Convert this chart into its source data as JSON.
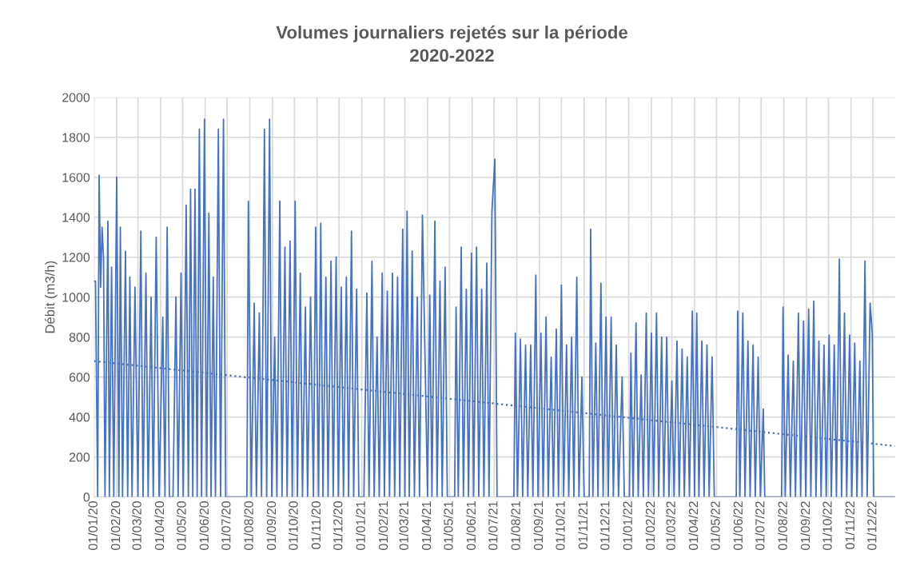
{
  "chart_data": {
    "type": "line",
    "title": "Volumes journaliers rejetés sur la période\n2020-2022",
    "ylabel": "Débit (m3/h)",
    "xlim": [
      "2020-01-01",
      "2022-12-31"
    ],
    "ylim": [
      0,
      2000
    ],
    "yticks": [
      0,
      200,
      400,
      600,
      800,
      1000,
      1200,
      1400,
      1600,
      1800,
      2000
    ],
    "xticks": [
      {
        "value": "2020-01-01",
        "label": "01/01/20"
      },
      {
        "value": "2020-02-01",
        "label": "01/02/20"
      },
      {
        "value": "2020-03-01",
        "label": "01/03/20"
      },
      {
        "value": "2020-04-01",
        "label": "01/04/20"
      },
      {
        "value": "2020-05-01",
        "label": "01/05/20"
      },
      {
        "value": "2020-06-01",
        "label": "01/06/20"
      },
      {
        "value": "2020-07-01",
        "label": "01/07/20"
      },
      {
        "value": "2020-08-01",
        "label": "01/08/20"
      },
      {
        "value": "2020-09-01",
        "label": "01/09/20"
      },
      {
        "value": "2020-10-01",
        "label": "01/10/20"
      },
      {
        "value": "2020-11-01",
        "label": "01/11/20"
      },
      {
        "value": "2020-12-01",
        "label": "01/12/20"
      },
      {
        "value": "2021-01-01",
        "label": "01/01/21"
      },
      {
        "value": "2021-02-01",
        "label": "01/02/21"
      },
      {
        "value": "2021-03-01",
        "label": "01/03/21"
      },
      {
        "value": "2021-04-01",
        "label": "01/04/21"
      },
      {
        "value": "2021-05-01",
        "label": "01/05/21"
      },
      {
        "value": "2021-06-01",
        "label": "01/06/21"
      },
      {
        "value": "2021-07-01",
        "label": "01/07/21"
      },
      {
        "value": "2021-08-01",
        "label": "01/08/21"
      },
      {
        "value": "2021-09-01",
        "label": "01/09/21"
      },
      {
        "value": "2021-10-01",
        "label": "01/10/21"
      },
      {
        "value": "2021-11-01",
        "label": "01/11/21"
      },
      {
        "value": "2021-12-01",
        "label": "01/12/21"
      },
      {
        "value": "2022-01-01",
        "label": "01/01/22"
      },
      {
        "value": "2022-02-01",
        "label": "01/02/22"
      },
      {
        "value": "2022-03-01",
        "label": "01/03/22"
      },
      {
        "value": "2022-04-01",
        "label": "01/04/22"
      },
      {
        "value": "2022-05-01",
        "label": "01/05/22"
      },
      {
        "value": "2022-06-01",
        "label": "01/06/22"
      },
      {
        "value": "2022-07-01",
        "label": "01/07/22"
      },
      {
        "value": "2022-08-01",
        "label": "01/08/22"
      },
      {
        "value": "2022-09-01",
        "label": "01/09/22"
      },
      {
        "value": "2022-10-01",
        "label": "01/10/22"
      },
      {
        "value": "2022-11-01",
        "label": "01/11/22"
      },
      {
        "value": "2022-12-01",
        "label": "01/12/22"
      }
    ],
    "grid": true,
    "series": [
      {
        "color": "#4472c4",
        "line_style": "solid",
        "x": [
          "2020-01-01",
          "2020-01-03",
          "2020-01-06",
          "2020-01-08",
          "2020-01-10",
          "2020-01-12",
          "2020-01-14",
          "2020-01-16",
          "2020-01-20",
          "2020-01-22",
          "2020-01-25",
          "2020-01-28",
          "2020-02-01",
          "2020-02-04",
          "2020-02-06",
          "2020-02-09",
          "2020-02-13",
          "2020-02-16",
          "2020-02-19",
          "2020-02-22",
          "2020-02-26",
          "2020-03-01",
          "2020-03-05",
          "2020-03-08",
          "2020-03-12",
          "2020-03-15",
          "2020-03-19",
          "2020-03-22",
          "2020-03-26",
          "2020-03-30",
          "2020-04-04",
          "2020-04-07",
          "2020-04-10",
          "2020-04-13",
          "2020-04-18",
          "2020-04-22",
          "2020-04-25",
          "2020-04-29",
          "2020-05-02",
          "2020-05-06",
          "2020-05-09",
          "2020-05-12",
          "2020-05-15",
          "2020-05-18",
          "2020-05-21",
          "2020-05-24",
          "2020-05-27",
          "2020-05-31",
          "2020-06-03",
          "2020-06-06",
          "2020-06-09",
          "2020-06-12",
          "2020-06-15",
          "2020-06-19",
          "2020-06-22",
          "2020-06-26",
          "2020-06-29",
          "2020-07-28",
          "2020-07-30",
          "2020-08-03",
          "2020-08-07",
          "2020-08-10",
          "2020-08-14",
          "2020-08-17",
          "2020-08-21",
          "2020-08-24",
          "2020-08-28",
          "2020-08-31",
          "2020-09-04",
          "2020-09-07",
          "2020-09-11",
          "2020-09-14",
          "2020-09-18",
          "2020-09-21",
          "2020-09-25",
          "2020-09-28",
          "2020-10-02",
          "2020-10-05",
          "2020-10-09",
          "2020-10-12",
          "2020-10-16",
          "2020-10-19",
          "2020-10-23",
          "2020-10-27",
          "2020-10-30",
          "2020-11-03",
          "2020-11-06",
          "2020-11-09",
          "2020-11-13",
          "2020-11-16",
          "2020-11-20",
          "2020-11-23",
          "2020-11-27",
          "2020-11-30",
          "2020-12-04",
          "2020-12-07",
          "2020-12-11",
          "2020-12-14",
          "2020-12-18",
          "2020-12-21",
          "2020-12-25",
          "2020-12-28",
          "2021-01-04",
          "2021-01-08",
          "2021-01-11",
          "2021-01-15",
          "2021-01-18",
          "2021-01-22",
          "2021-01-25",
          "2021-01-29",
          "2021-02-01",
          "2021-02-05",
          "2021-02-08",
          "2021-02-12",
          "2021-02-15",
          "2021-02-19",
          "2021-02-22",
          "2021-02-26",
          "2021-03-01",
          "2021-03-04",
          "2021-03-07",
          "2021-03-11",
          "2021-03-14",
          "2021-03-18",
          "2021-03-21",
          "2021-03-25",
          "2021-04-01",
          "2021-04-04",
          "2021-04-07",
          "2021-04-11",
          "2021-04-14",
          "2021-04-18",
          "2021-04-21",
          "2021-04-25",
          "2021-04-28",
          "2021-05-08",
          "2021-05-10",
          "2021-05-13",
          "2021-05-17",
          "2021-05-20",
          "2021-05-24",
          "2021-05-27",
          "2021-05-31",
          "2021-06-03",
          "2021-06-07",
          "2021-06-10",
          "2021-06-14",
          "2021-06-17",
          "2021-06-21",
          "2021-06-24",
          "2021-06-28",
          "2021-07-02",
          "2021-07-05",
          "2021-07-28",
          "2021-07-30",
          "2021-08-02",
          "2021-08-06",
          "2021-08-09",
          "2021-08-13",
          "2021-08-16",
          "2021-08-20",
          "2021-08-23",
          "2021-08-27",
          "2021-08-30",
          "2021-09-03",
          "2021-09-06",
          "2021-09-10",
          "2021-09-13",
          "2021-09-17",
          "2021-09-20",
          "2021-09-24",
          "2021-09-27",
          "2021-10-01",
          "2021-10-04",
          "2021-10-08",
          "2021-10-11",
          "2021-10-15",
          "2021-10-18",
          "2021-10-22",
          "2021-10-25",
          "2021-10-29",
          "2021-11-01",
          "2021-11-08",
          "2021-11-10",
          "2021-11-13",
          "2021-11-17",
          "2021-11-20",
          "2021-11-24",
          "2021-11-27",
          "2021-12-01",
          "2021-12-04",
          "2021-12-08",
          "2021-12-11",
          "2021-12-15",
          "2021-12-18",
          "2021-12-23",
          "2021-12-26",
          "2022-01-02",
          "2022-01-04",
          "2022-01-07",
          "2022-01-11",
          "2022-01-14",
          "2022-01-18",
          "2022-01-21",
          "2022-01-25",
          "2022-01-28",
          "2022-02-01",
          "2022-02-04",
          "2022-02-08",
          "2022-02-11",
          "2022-02-15",
          "2022-02-18",
          "2022-02-22",
          "2022-02-25",
          "2022-03-01",
          "2022-03-04",
          "2022-03-08",
          "2022-03-11",
          "2022-03-15",
          "2022-03-18",
          "2022-03-22",
          "2022-03-25",
          "2022-03-29",
          "2022-04-01",
          "2022-04-04",
          "2022-04-07",
          "2022-04-11",
          "2022-04-14",
          "2022-04-18",
          "2022-04-21",
          "2022-04-25",
          "2022-04-28",
          "2022-05-28",
          "2022-05-30",
          "2022-06-02",
          "2022-06-06",
          "2022-06-09",
          "2022-06-13",
          "2022-06-16",
          "2022-06-20",
          "2022-06-23",
          "2022-06-27",
          "2022-06-30",
          "2022-07-04",
          "2022-07-06",
          "2022-07-29",
          "2022-07-31",
          "2022-08-03",
          "2022-08-07",
          "2022-08-10",
          "2022-08-14",
          "2022-08-17",
          "2022-08-21",
          "2022-08-24",
          "2022-08-28",
          "2022-08-31",
          "2022-09-04",
          "2022-09-07",
          "2022-09-11",
          "2022-09-14",
          "2022-09-18",
          "2022-09-21",
          "2022-09-25",
          "2022-09-28",
          "2022-10-02",
          "2022-10-05",
          "2022-10-09",
          "2022-10-12",
          "2022-10-16",
          "2022-10-19",
          "2022-10-23",
          "2022-10-26",
          "2022-10-30",
          "2022-11-02",
          "2022-11-06",
          "2022-11-09",
          "2022-11-13",
          "2022-11-16",
          "2022-11-20",
          "2022-11-23",
          "2022-11-27",
          "2022-11-30",
          "2022-12-02",
          "2022-12-31"
        ],
        "values": [
          1080,
          1080,
          0,
          1610,
          1050,
          1350,
          1200,
          0,
          1380,
          0,
          1150,
          0,
          1600,
          0,
          1350,
          0,
          1230,
          0,
          1100,
          0,
          1050,
          0,
          1330,
          0,
          1120,
          0,
          1000,
          0,
          1300,
          0,
          900,
          0,
          1350,
          0,
          0,
          1000,
          0,
          1120,
          0,
          1460,
          0,
          1540,
          0,
          1540,
          0,
          1840,
          0,
          1890,
          0,
          1420,
          0,
          1100,
          0,
          1840,
          0,
          1890,
          0,
          0,
          1480,
          0,
          970,
          0,
          920,
          0,
          1840,
          0,
          1890,
          0,
          800,
          0,
          1480,
          0,
          1250,
          0,
          1280,
          0,
          1480,
          0,
          1120,
          0,
          950,
          0,
          1000,
          0,
          1350,
          0,
          1370,
          0,
          1100,
          0,
          1180,
          0,
          1200,
          0,
          1050,
          0,
          1100,
          0,
          1330,
          0,
          1040,
          0,
          0,
          1020,
          0,
          1180,
          0,
          800,
          0,
          1120,
          0,
          1030,
          0,
          1120,
          0,
          1100,
          0,
          1340,
          0,
          1430,
          0,
          1230,
          0,
          1000,
          0,
          1410,
          0,
          1010,
          0,
          1380,
          0,
          1080,
          0,
          1150,
          0,
          0,
          950,
          0,
          1250,
          0,
          1040,
          0,
          1220,
          0,
          1250,
          0,
          1040,
          0,
          1170,
          0,
          1430,
          1690,
          0,
          0,
          820,
          0,
          790,
          0,
          760,
          0,
          760,
          0,
          1110,
          0,
          820,
          0,
          900,
          0,
          700,
          0,
          840,
          0,
          1060,
          0,
          760,
          0,
          800,
          0,
          1100,
          0,
          600,
          0,
          0,
          1340,
          0,
          770,
          0,
          1070,
          0,
          900,
          0,
          900,
          0,
          760,
          0,
          600,
          0,
          0,
          720,
          0,
          870,
          0,
          610,
          0,
          920,
          0,
          820,
          0,
          920,
          0,
          800,
          0,
          800,
          0,
          580,
          0,
          780,
          0,
          740,
          0,
          700,
          0,
          930,
          0,
          920,
          0,
          780,
          0,
          760,
          0,
          700,
          0,
          0,
          930,
          0,
          920,
          0,
          780,
          0,
          760,
          0,
          700,
          0,
          440,
          0,
          0,
          950,
          0,
          710,
          0,
          680,
          0,
          920,
          0,
          880,
          0,
          940,
          0,
          980,
          0,
          780,
          0,
          760,
          0,
          810,
          0,
          760,
          0,
          1190,
          0,
          920,
          0,
          810,
          0,
          770,
          0,
          680,
          0,
          1180,
          0,
          970,
          820,
          0,
          0
        ]
      },
      {
        "color": "#4472c4",
        "line_style": "dotted",
        "x": [
          "2020-01-01",
          "2022-12-31"
        ],
        "values": [
          680,
          255
        ]
      }
    ]
  }
}
